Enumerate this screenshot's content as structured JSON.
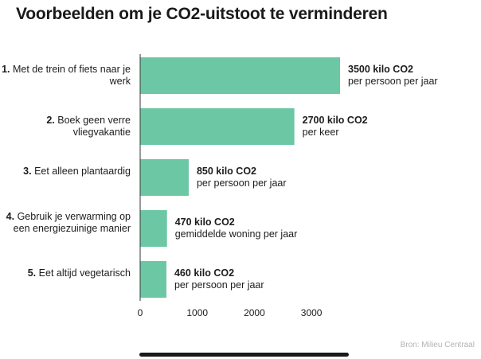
{
  "title": "Voorbeelden om je CO2-uitstoot te verminderen",
  "source": "Bron: Milieu Centraal",
  "colors": {
    "bar": "#6cc7a4",
    "text": "#1c1c1c",
    "source": "#b3b3b3"
  },
  "chart_data": {
    "type": "bar",
    "orientation": "horizontal",
    "title": "Voorbeelden om je CO2-uitstoot te verminderen",
    "categories": [
      {
        "num": "1.",
        "text": "Met de trein of fiets naar je werk"
      },
      {
        "num": "2.",
        "text": "Boek geen verre vliegvakantie"
      },
      {
        "num": "3.",
        "text": "Eet alleen plantaardig"
      },
      {
        "num": "4.",
        "text": "Gebruik je verwarming op een energiezuinige manier"
      },
      {
        "num": "5.",
        "text": "Eet altijd vegetarisch"
      }
    ],
    "values": [
      3500,
      2700,
      850,
      470,
      460
    ],
    "value_labels": [
      {
        "main": "3500 kilo CO2",
        "sub": "per persoon per jaar"
      },
      {
        "main": "2700 kilo CO2",
        "sub": "per keer"
      },
      {
        "main": "850 kilo CO2",
        "sub": "per persoon per jaar"
      },
      {
        "main": "470 kilo CO2",
        "sub": "gemiddelde woning per jaar"
      },
      {
        "main": "460 kilo CO2",
        "sub": "per persoon per jaar"
      }
    ],
    "x_ticks": [
      0,
      1000,
      2000,
      3000
    ],
    "xlim": [
      0,
      3500
    ],
    "grid": false
  }
}
